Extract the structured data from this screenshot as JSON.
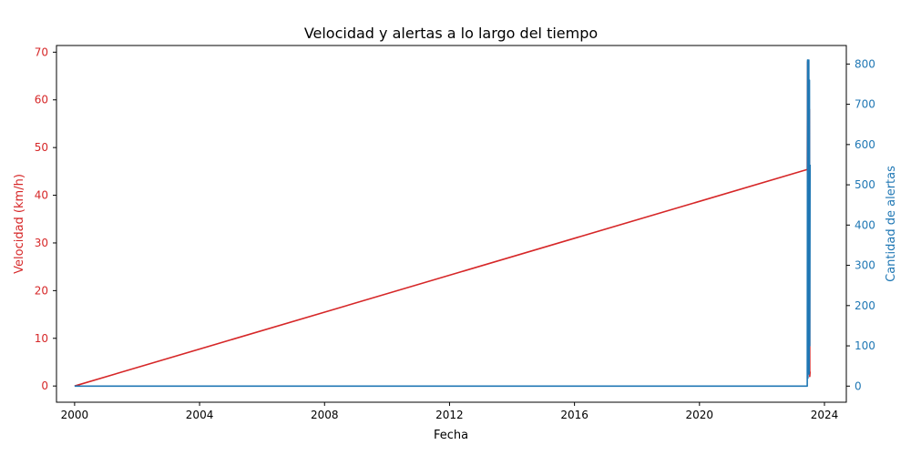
{
  "chart_data": {
    "type": "line",
    "title": "Velocidad y alertas a lo largo del tiempo",
    "xlabel": "Fecha",
    "ylabel_left": "Velocidad (km/h)",
    "ylabel_right": "Cantidad de alertas",
    "xlim": [
      1999.42,
      2024.7
    ],
    "ylim_left": [
      -3.4,
      71.4
    ],
    "ylim_right": [
      -40,
      846
    ],
    "x_ticks": [
      2000,
      2004,
      2008,
      2012,
      2016,
      2020,
      2024
    ],
    "x_tick_labels": [
      "2000",
      "2004",
      "2008",
      "2012",
      "2016",
      "2020",
      "2024"
    ],
    "y_left_ticks": [
      0,
      10,
      20,
      30,
      40,
      50,
      60,
      70
    ],
    "y_left_tick_labels": [
      "0",
      "10",
      "20",
      "30",
      "40",
      "50",
      "60",
      "70"
    ],
    "y_right_ticks": [
      0,
      100,
      200,
      300,
      400,
      500,
      600,
      700,
      800
    ],
    "y_right_tick_labels": [
      "0",
      "100",
      "200",
      "300",
      "400",
      "500",
      "600",
      "700",
      "800"
    ],
    "grid": false,
    "series": [
      {
        "axis": "left",
        "color": "#d62728",
        "x": [
          2000.0,
          2023.45,
          2023.46,
          2023.47,
          2023.48,
          2023.49,
          2023.5,
          2023.51,
          2023.52,
          2023.53,
          2023.54
        ],
        "y": [
          0,
          45.4,
          68,
          2,
          65,
          5,
          60,
          3,
          58,
          2,
          3
        ]
      },
      {
        "axis": "right",
        "color": "#1f77b4",
        "x": [
          2000.0,
          2023.45,
          2023.46,
          2023.47,
          2023.48,
          2023.49,
          2023.5,
          2023.51,
          2023.52,
          2023.53,
          2023.54
        ],
        "y": [
          0,
          0,
          810,
          20,
          790,
          50,
          810,
          30,
          760,
          100,
          550
        ]
      }
    ],
    "colors": {
      "left_axis": "#d62728",
      "right_axis": "#1f77b4",
      "frame": "#000000"
    }
  }
}
